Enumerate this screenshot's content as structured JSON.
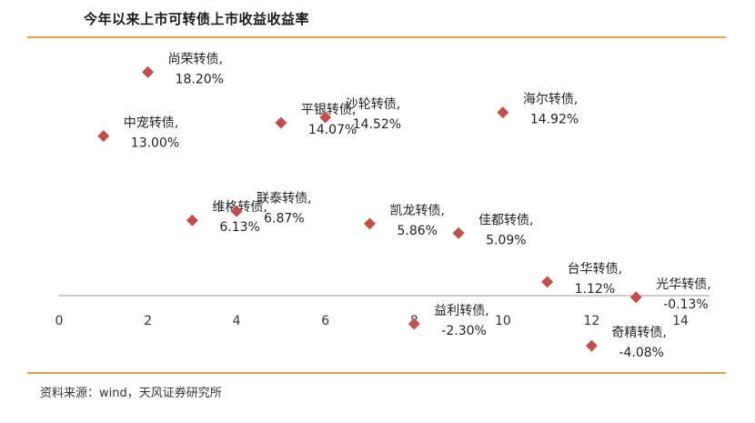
{
  "header": {
    "title": "今年以来上市可转债上市收益收益率"
  },
  "footer": {
    "source": "资料来源：wind，天风证券研究所"
  },
  "chart_data": {
    "type": "scatter",
    "title": "今年以来上市可转债上市收益收益率",
    "xlim": [
      0,
      14
    ],
    "x_ticks": [
      "0",
      "2",
      "4",
      "6",
      "8",
      "10",
      "12",
      "14"
    ],
    "marker_color": "#c0504d",
    "points": [
      {
        "x": 1,
        "y": 13.0,
        "name": "中宠转债,",
        "value_label": "13.00%"
      },
      {
        "x": 2,
        "y": 18.2,
        "name": "尚荣转债,",
        "value_label": "18.20%"
      },
      {
        "x": 3,
        "y": 6.13,
        "name": "维格转债,",
        "value_label": "6.13%"
      },
      {
        "x": 4,
        "y": 6.87,
        "name": "联泰转债,",
        "value_label": "6.87%"
      },
      {
        "x": 5,
        "y": 14.07,
        "name": "平银转债,",
        "value_label": "14.07%"
      },
      {
        "x": 6,
        "y": 14.52,
        "name": "沙轮转债,",
        "value_label": "14.52%"
      },
      {
        "x": 7,
        "y": 5.86,
        "name": "凯龙转债,",
        "value_label": "5.86%"
      },
      {
        "x": 8,
        "y": -2.3,
        "name": "益利转债,",
        "value_label": "-2.30%"
      },
      {
        "x": 9,
        "y": 5.09,
        "name": "佳都转债,",
        "value_label": "5.09%"
      },
      {
        "x": 10,
        "y": 14.92,
        "name": "海尔转债,",
        "value_label": "14.92%"
      },
      {
        "x": 11,
        "y": 1.12,
        "name": "台华转债,",
        "value_label": "1.12%"
      },
      {
        "x": 12,
        "y": -4.08,
        "name": "奇精转债,",
        "value_label": "-4.08%"
      },
      {
        "x": 13,
        "y": -0.13,
        "name": "光华转债,",
        "value_label": "-0.13%"
      }
    ]
  }
}
